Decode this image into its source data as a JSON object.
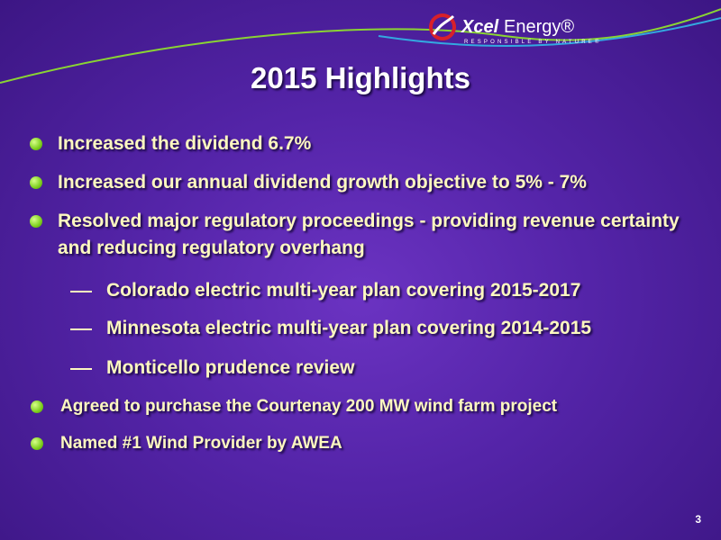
{
  "logo": {
    "brand_bold": "Xcel",
    "brand": "Energy®",
    "tagline": "RESPONSIBLE BY NATURE®"
  },
  "title": "2015 Highlights",
  "bullets": [
    {
      "level": 1,
      "text": "Increased the dividend 6.7%"
    },
    {
      "level": 1,
      "text": "Increased our annual dividend growth objective to 5% - 7%"
    },
    {
      "level": 1,
      "text": "Resolved major regulatory proceedings - providing revenue certainty and reducing regulatory overhang"
    },
    {
      "level": 2,
      "text": "Colorado electric multi-year plan covering 2015-2017"
    },
    {
      "level": 2,
      "text": "Minnesota electric multi-year plan covering 2014-2015"
    },
    {
      "level": 2,
      "text": "Monticello prudence review"
    },
    {
      "level": 1,
      "text": "Agreed to purchase the Courtenay 200 MW wind farm project"
    },
    {
      "level": 1,
      "text": "Named #1 Wind Provider by AWEA"
    }
  ],
  "page_number": 3
}
